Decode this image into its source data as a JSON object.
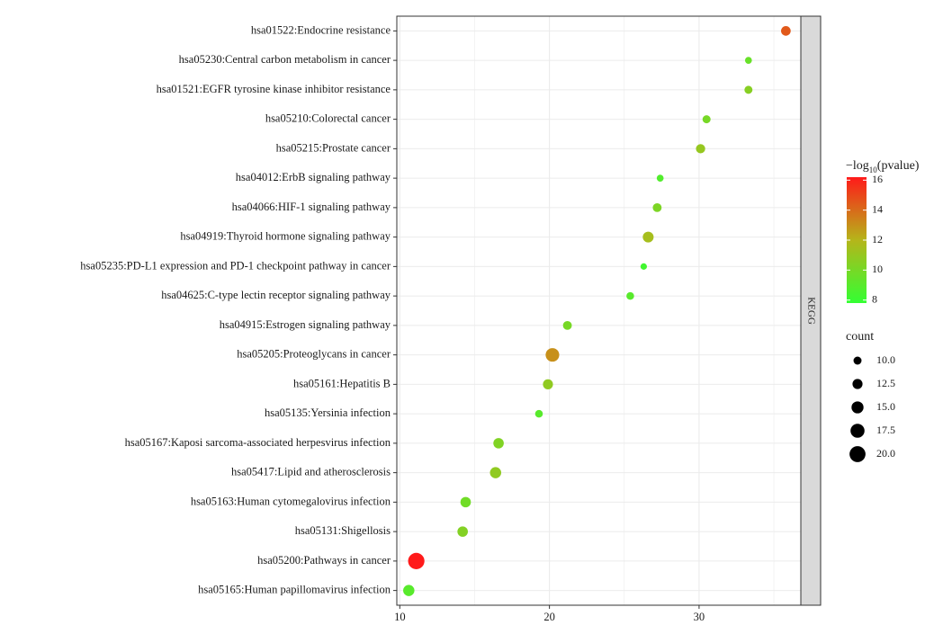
{
  "chart_data": {
    "type": "scatter",
    "title": "",
    "xlabel": "",
    "ylabel": "",
    "facet_label": "KEGG",
    "xlim": [
      9.8,
      36.8
    ],
    "x_ticks": [
      10,
      20,
      30
    ],
    "grid": true,
    "points": [
      {
        "term": "hsa01522:Endocrine resistance",
        "x": 35.8,
        "count": 12.0,
        "neglog10p": 14.5
      },
      {
        "term": "hsa05230:Central carbon metabolism in cancer",
        "x": 33.3,
        "count": 8.5,
        "neglog10p": 9.5
      },
      {
        "term": "hsa01521:EGFR tyrosine kinase inhibitor resistance",
        "x": 33.3,
        "count": 10.0,
        "neglog10p": 10.5
      },
      {
        "term": "hsa05210:Colorectal cancer",
        "x": 30.5,
        "count": 10.0,
        "neglog10p": 10.0
      },
      {
        "term": "hsa05215:Prostate cancer",
        "x": 30.1,
        "count": 11.5,
        "neglog10p": 11.0
      },
      {
        "term": "hsa04012:ErbB signaling pathway",
        "x": 27.4,
        "count": 8.5,
        "neglog10p": 8.8
      },
      {
        "term": "hsa04066:HIF-1 signaling pathway",
        "x": 27.2,
        "count": 11.0,
        "neglog10p": 10.2
      },
      {
        "term": "hsa04919:Thyroid hormone signaling pathway",
        "x": 26.6,
        "count": 13.5,
        "neglog10p": 11.5
      },
      {
        "term": "hsa05235:PD-L1 expression and PD-1 checkpoint pathway in cancer",
        "x": 26.3,
        "count": 8.0,
        "neglog10p": 8.3
      },
      {
        "term": "hsa04625:C-type lectin receptor signaling pathway",
        "x": 25.4,
        "count": 9.5,
        "neglog10p": 9.0
      },
      {
        "term": "hsa04915:Estrogen signaling pathway",
        "x": 21.2,
        "count": 11.0,
        "neglog10p": 10.0
      },
      {
        "term": "hsa05205:Proteoglycans in cancer",
        "x": 20.2,
        "count": 17.0,
        "neglog10p": 13.0
      },
      {
        "term": "hsa05161:Hepatitis B",
        "x": 19.9,
        "count": 12.5,
        "neglog10p": 10.8
      },
      {
        "term": "hsa05135:Yersinia infection",
        "x": 19.3,
        "count": 9.5,
        "neglog10p": 9.0
      },
      {
        "term": "hsa05167:Kaposi sarcoma-associated herpesvirus infection",
        "x": 16.6,
        "count": 13.0,
        "neglog10p": 10.3
      },
      {
        "term": "hsa05417:Lipid and atherosclerosis",
        "x": 16.4,
        "count": 14.0,
        "neglog10p": 10.8
      },
      {
        "term": "hsa05163:Human cytomegalovirus infection",
        "x": 14.4,
        "count": 13.0,
        "neglog10p": 9.8
      },
      {
        "term": "hsa05131:Shigellosis",
        "x": 14.2,
        "count": 13.0,
        "neglog10p": 10.4
      },
      {
        "term": "hsa05200:Pathways in cancer",
        "x": 11.1,
        "count": 20.5,
        "neglog10p": 16.2
      },
      {
        "term": "hsa05165:Human papillomavirus infection",
        "x": 10.6,
        "count": 14.0,
        "neglog10p": 9.0
      }
    ],
    "color_legend": {
      "title_prefix": "−log",
      "title_sub": "10",
      "title_suffix": "(pvalue)",
      "range": [
        7.8,
        16.2
      ],
      "ticks": [
        8,
        10,
        12,
        14,
        16
      ],
      "low_color": "#33ff33",
      "mid_color": "#b5b51a",
      "high_color": "#ff1a1a"
    },
    "size_legend": {
      "title": "count",
      "values": [
        10.0,
        12.5,
        15.0,
        17.5,
        20.0
      ],
      "labels": [
        "10.0",
        "12.5",
        "15.0",
        "17.5",
        "20.0"
      ]
    },
    "colors": {
      "panel_border": "#333333",
      "grid": "#ebebeb",
      "strip_fill": "#d9d9d9"
    }
  }
}
